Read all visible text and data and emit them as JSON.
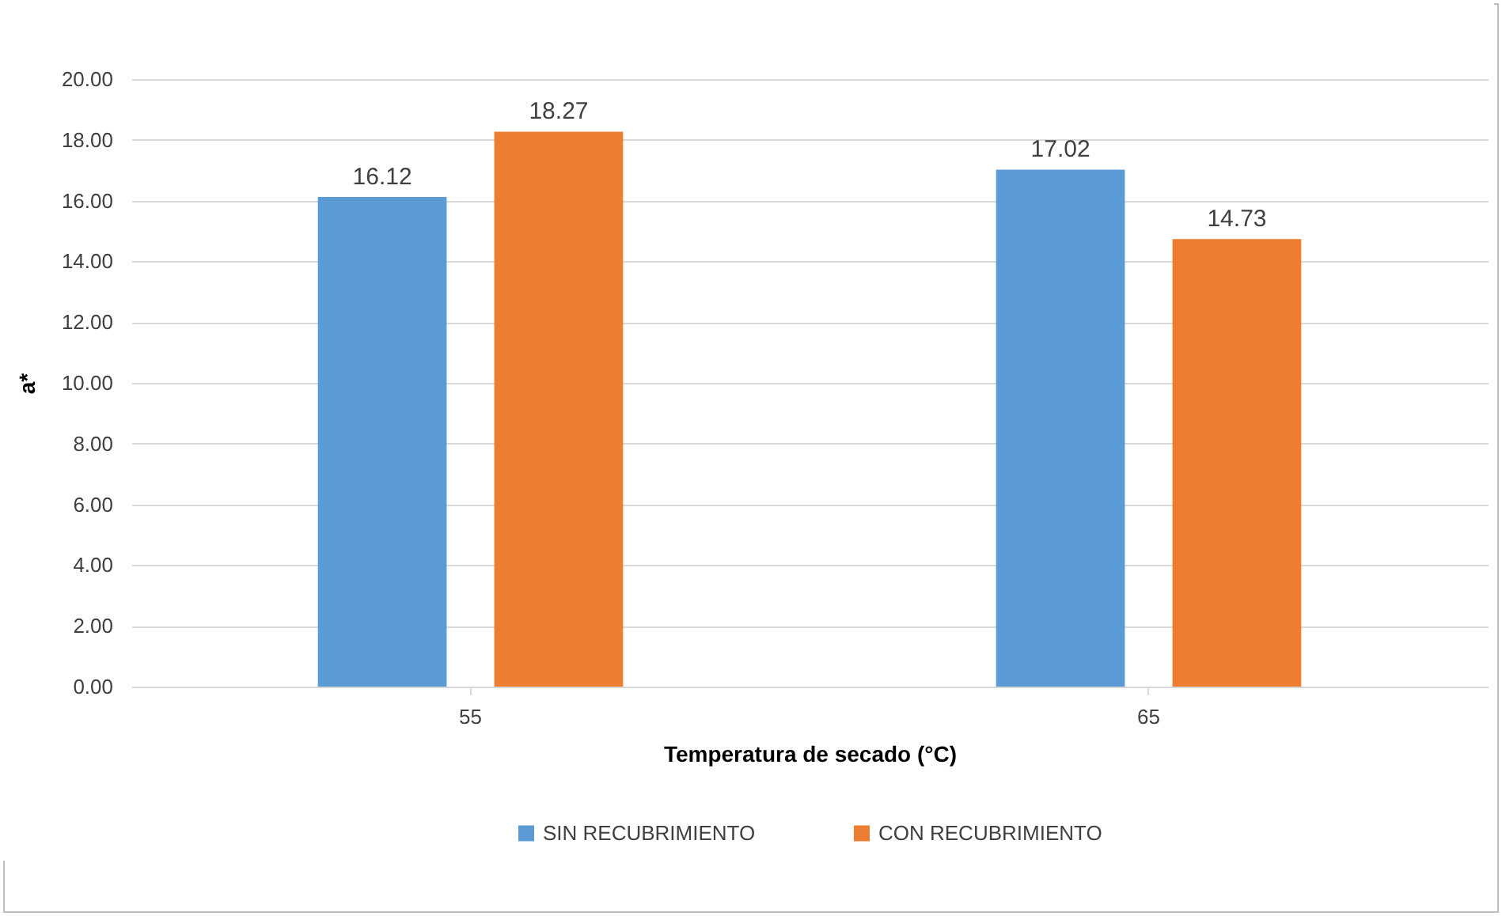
{
  "chart_data": {
    "type": "bar",
    "xlabel": "Temperatura de secado (°C)",
    "ylabel": "a*",
    "categories": [
      "55",
      "65"
    ],
    "series": [
      {
        "name": "SIN RECUBRIMIENTO",
        "color": "#5b9bd5",
        "values": [
          16.12,
          17.02
        ]
      },
      {
        "name": "CON RECUBRIMIENTO",
        "color": "#ed7d31",
        "values": [
          18.27,
          14.73
        ]
      }
    ],
    "ylim": [
      0,
      20
    ],
    "yticks": [
      {
        "value": 0,
        "label": "0.00"
      },
      {
        "value": 2,
        "label": "2.00"
      },
      {
        "value": 4,
        "label": "4.00"
      },
      {
        "value": 6,
        "label": "6.00"
      },
      {
        "value": 8,
        "label": "8.00"
      },
      {
        "value": 10,
        "label": "10.00"
      },
      {
        "value": 12,
        "label": "12.00"
      },
      {
        "value": 14,
        "label": "14.00"
      },
      {
        "value": 16,
        "label": "16.00"
      },
      {
        "value": 18,
        "label": "18.00"
      },
      {
        "value": 20,
        "label": "20.00"
      }
    ],
    "grid": "y",
    "legend": "bottom",
    "data_labels": true
  }
}
